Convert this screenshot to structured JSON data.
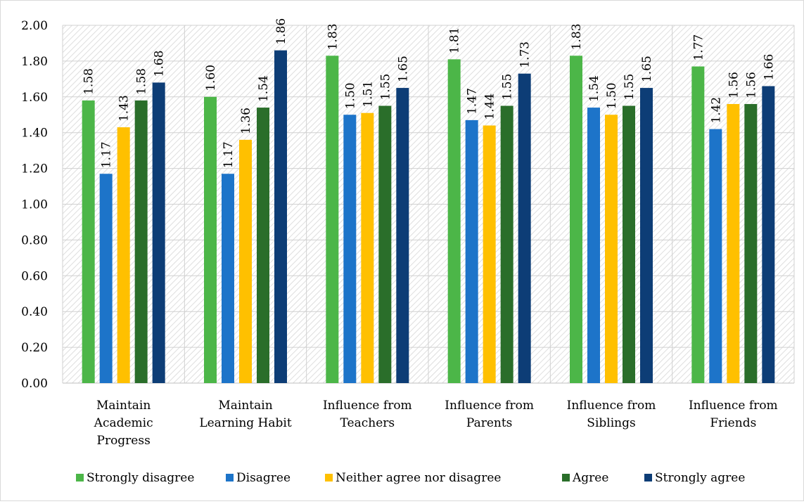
{
  "chart_data": {
    "type": "bar",
    "title": "",
    "xlabel": "",
    "ylabel": "",
    "ylim": [
      0,
      2
    ],
    "yticks": [
      "0.00",
      "0.20",
      "0.40",
      "0.60",
      "0.80",
      "1.00",
      "1.20",
      "1.40",
      "1.60",
      "1.80",
      "2.00"
    ],
    "grid": true,
    "legend_position": "bottom",
    "categories": [
      [
        "Maintain",
        "Academic",
        "Progress"
      ],
      [
        "Maintain",
        "Learning Habit"
      ],
      [
        "Influence from",
        "Teachers"
      ],
      [
        "Influence from",
        "Parents"
      ],
      [
        "Influence from",
        "Siblings"
      ],
      [
        "Influence from",
        "Friends"
      ]
    ],
    "series": [
      {
        "name": "Strongly disagree",
        "color": "#4cb648",
        "values": [
          1.58,
          1.6,
          1.83,
          1.81,
          1.83,
          1.77
        ],
        "labels": [
          "1.58",
          "1.60",
          "1.83",
          "1.81",
          "1.83",
          "1.77"
        ]
      },
      {
        "name": "Disagree",
        "color": "#1d74c9",
        "values": [
          1.17,
          1.17,
          1.5,
          1.47,
          1.54,
          1.42
        ],
        "labels": [
          "1.17",
          "1.17",
          "1.50",
          "1.47",
          "1.54",
          "1.42"
        ]
      },
      {
        "name": "Neither agree nor disagree",
        "color": "#ffc000",
        "values": [
          1.43,
          1.36,
          1.51,
          1.44,
          1.5,
          1.56
        ],
        "labels": [
          "1.43",
          "1.36",
          "1.51",
          "1.44",
          "1.50",
          "1.56"
        ]
      },
      {
        "name": "Agree",
        "color": "#2a6e2a",
        "values": [
          1.58,
          1.54,
          1.55,
          1.55,
          1.55,
          1.56
        ],
        "labels": [
          "1.58",
          "1.54",
          "1.55",
          "1.55",
          "1.55",
          "1.56"
        ]
      },
      {
        "name": "Strongly agree",
        "color": "#0d3d76",
        "values": [
          1.68,
          1.86,
          1.65,
          1.73,
          1.65,
          1.66
        ],
        "labels": [
          "1.68",
          "1.86",
          "1.65",
          "1.73",
          "1.65",
          "1.66"
        ]
      }
    ]
  }
}
